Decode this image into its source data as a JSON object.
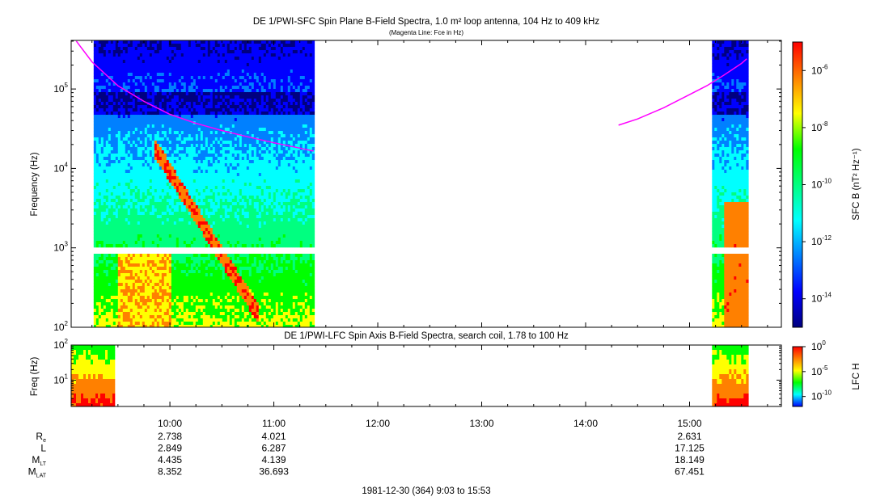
{
  "chart_data": [
    {
      "type": "heatmap",
      "title": "DE 1/PWI-SFC  Spin Plane B-Field Spectra, 1.0 m² loop antenna, 104 Hz to 409 kHz",
      "subtitle": "(Magenta Line: Fce in Hz)",
      "ylabel": "Frequency (Hz)",
      "yscale": "log",
      "ylim": [
        100,
        409000
      ],
      "yticks": [
        100,
        1000,
        10000,
        100000
      ],
      "ytick_labels": [
        {
          "base": "10",
          "exp": "2"
        },
        {
          "base": "10",
          "exp": "3"
        },
        {
          "base": "10",
          "exp": "4"
        },
        {
          "base": "10",
          "exp": "5"
        }
      ],
      "xlim": [
        "09:03",
        "15:53"
      ],
      "colorbar": {
        "label": "SFC B (nT² Hz⁻¹)",
        "scale": "log",
        "range": [
          1e-15,
          1e-05
        ],
        "ticks": [
          {
            "value": 1e-06,
            "base": "10",
            "exp": "-6"
          },
          {
            "value": 1e-08,
            "base": "10",
            "exp": "-8"
          },
          {
            "value": 1e-10,
            "base": "10",
            "exp": "-10"
          },
          {
            "value": 1e-12,
            "base": "10",
            "exp": "-12"
          },
          {
            "value": 1e-14,
            "base": "10",
            "exp": "-14"
          }
        ],
        "colors": [
          "#000080",
          "#0000ff",
          "#0080ff",
          "#00ffff",
          "#00ff80",
          "#00ff00",
          "#ffff00",
          "#ff8000",
          "#ff0000"
        ]
      },
      "data_intervals": [
        [
          "09:16",
          "11:23"
        ],
        [
          "15:13",
          "15:33"
        ]
      ],
      "data_gap_frequency_band_hz": [
        900,
        1030
      ],
      "series": [
        {
          "name": "Fce",
          "color": "#ff00ff",
          "x": [
            "09:06",
            "09:15",
            "09:30",
            "09:45",
            "10:00",
            "10:15",
            "10:30",
            "10:45",
            "11:00",
            "11:15",
            "11:23"
          ],
          "y": [
            400000,
            220000,
            110000,
            70000,
            48000,
            37000,
            30000,
            25000,
            21000,
            18000,
            16500
          ],
          "x2": [
            "14:19",
            "14:30",
            "14:45",
            "15:00",
            "15:10",
            "15:20",
            "15:30",
            "15:33"
          ],
          "y2": [
            35000,
            42000,
            58000,
            85000,
            110000,
            150000,
            210000,
            240000
          ]
        }
      ]
    },
    {
      "type": "heatmap",
      "title": "DE 1/PWI-LFC  Spin Axis B-Field Spectra, search coil, 1.78 to 100 Hz",
      "ylabel": "Freq (Hz)",
      "yscale": "log",
      "ylim": [
        1.78,
        100
      ],
      "yticks": [
        10,
        100
      ],
      "ytick_labels": [
        {
          "base": "10",
          "exp": "1"
        },
        {
          "base": "10",
          "exp": "2"
        }
      ],
      "xlim": [
        "09:03",
        "15:53"
      ],
      "colorbar": {
        "label": "LFC H",
        "scale": "log",
        "range": [
          1e-12,
          1
        ],
        "ticks": [
          {
            "value": 1,
            "base": "10",
            "exp": "0"
          },
          {
            "value": 1e-05,
            "base": "10",
            "exp": "-5"
          },
          {
            "value": 1e-10,
            "base": "10",
            "exp": "-10"
          }
        ],
        "colors": [
          "#0000ff",
          "#00ffff",
          "#00ff00",
          "#ffff00",
          "#ff8000",
          "#ff0000"
        ]
      },
      "data_intervals": [
        [
          "09:03",
          "09:28"
        ],
        [
          "15:13",
          "15:33"
        ]
      ]
    }
  ],
  "time_axis": {
    "major_ticks": [
      "10:00",
      "11:00",
      "12:00",
      "13:00",
      "14:00",
      "15:00"
    ],
    "minor_step_minutes": 15
  },
  "ephemeris": {
    "rows": [
      {
        "label": "R",
        "sub": "e",
        "values": [
          "2.738",
          "4.021",
          "",
          "",
          "",
          "2.631"
        ]
      },
      {
        "label": "L",
        "sub": "",
        "values": [
          "2.849",
          "6.287",
          "",
          "",
          "",
          "17.125"
        ]
      },
      {
        "label": "M",
        "sub": "LT",
        "values": [
          "4.435",
          "4.139",
          "",
          "",
          "",
          "18.149"
        ]
      },
      {
        "label": "M",
        "sub": "LAT",
        "values": [
          "8.352",
          "36.693",
          "",
          "",
          "",
          "67.451"
        ]
      }
    ]
  },
  "footer": "1981-12-30 (364) 9:03 to 15:53"
}
